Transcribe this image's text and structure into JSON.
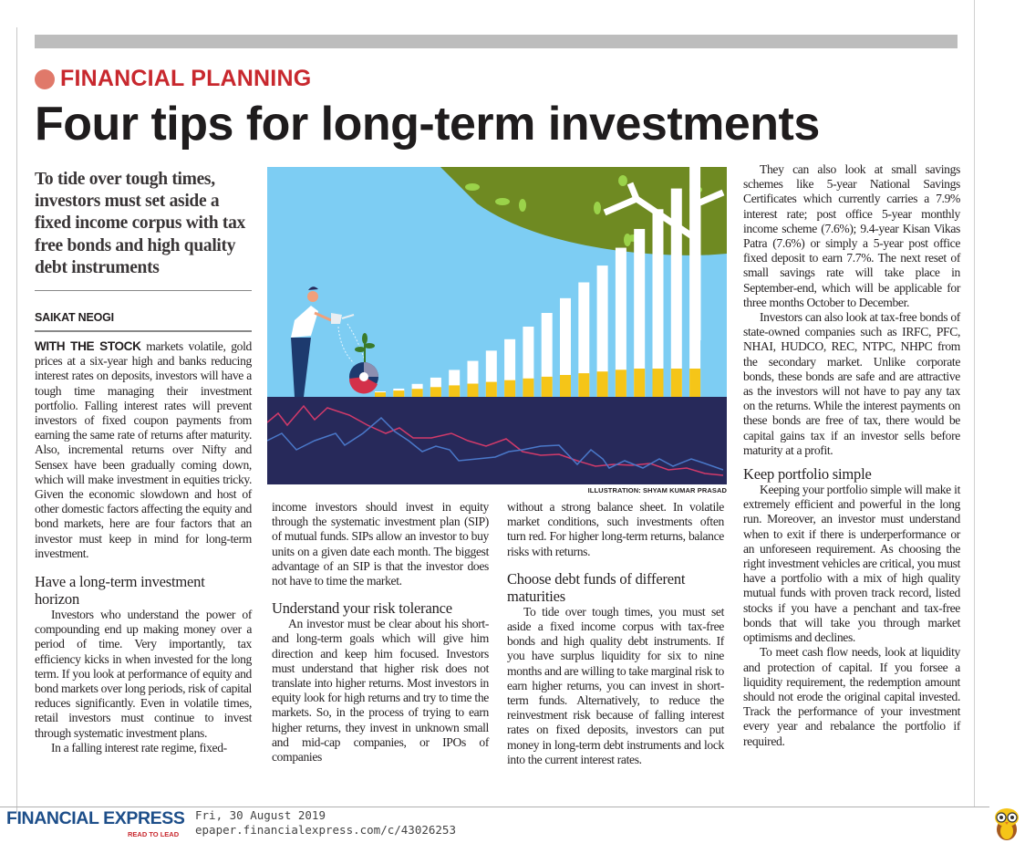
{
  "article": {
    "kicker": "FINANCIAL PLANNING",
    "title": "Four tips for long-term investments",
    "standfirst": "To tide over tough times, investors must set aside a fixed income corpus with tax free bonds and high quality debt instruments",
    "byline": "SAIKAT NEOGI",
    "illustration_credit": "ILLUSTRATION: SHYAM KUMAR PRASAD",
    "lead_caps": "WITH THE STOCK",
    "intro": " markets volatile, gold prices at a six-year high and banks reducing interest rates on deposits, investors will have a tough time managing their investment portfolio. Falling interest rates will prevent investors of fixed coupon payments from earning the same rate of returns after maturity. Also, incremental returns over Nifty and Sensex have been gradually coming down, which will make investment in equities tricky. Given the economic slowdown and host of other domestic factors affecting the equity and bond markets, here are four factors that an investor must keep in mind for long-term investment.",
    "sections": [
      {
        "heading": "Have a long-term investment horizon",
        "paragraphs": [
          "Investors who understand the power of compounding end up making money over a period of time. Very importantly, tax efficiency kicks in when invested for the long term. If you look at performance of equity and bond markets over long periods, risk of capital reduces significantly. Even in volatile times, retail investors must continue to invest through systematic investment plans.",
          "In a falling interest rate regime, fixed-",
          "income investors should invest in equity through the systematic investment plan (SIP) of mutual funds. SIPs allow an investor to buy units on a given date each month. The biggest advantage of an SIP is that the investor does not have to time the market."
        ]
      },
      {
        "heading": "Understand your risk tolerance",
        "paragraphs": [
          "An investor must be clear about his short- and long-term goals which will give him direction and keep him focused. Investors must understand that higher risk does not translate into higher returns. Most investors in equity look for high returns and try to time the markets. So, in the process of trying to earn higher returns, they invest in unknown small and mid-cap companies, or IPOs of companies",
          "without a strong balance sheet. In volatile market conditions, such investments often turn red. For higher long-term returns, balance risks with returns."
        ]
      },
      {
        "heading": "Choose debt funds of different maturities",
        "paragraphs": [
          "To tide over tough times, you must set aside a fixed income corpus with tax-free bonds and high quality debt instruments. If you have surplus liquidity for six to nine months and are willing to take marginal risk to earn higher returns, you can invest in short-term funds. Alternatively, to reduce the reinvestment risk because of falling interest rates on fixed deposits, investors can put money in long-term debt instruments and lock into the current interest rates.",
          "They can also look at small savings schemes like 5-year National Savings Certificates which currently carries a 7.9% interest rate; post office 5-year monthly income scheme (7.6%); 9.4-year Kisan Vikas Patra (7.6%) or simply a 5-year post office fixed deposit to earn 7.7%. The next reset of small savings rate will take place in September-end, which will be applicable for three months October to December.",
          "Investors can also look at tax-free bonds of state-owned companies such as IRFC, PFC, NHAI, HUDCO, REC, NTPC, NHPC from the secondary market. Unlike corporate bonds, these bonds are safe and are attractive as the investors will not have to pay any tax on the returns. While the interest payments on these bonds are free of tax, there would be capital gains tax if an investor sells before maturity at a profit."
        ]
      },
      {
        "heading": "Keep portfolio simple",
        "paragraphs": [
          "Keeping your portfolio simple will make it extremely efficient and powerful in the long run. Moreover, an investor must understand when to exit if there is underperformance or an unforeseen requirement. As choosing the right investment vehicles are critical, you must have a portfolio with a mix of high quality mutual funds with proven track record, listed stocks if you have a penchant and tax-free bonds that will take you through market optimisms and declines.",
          "To meet cash flow needs, look at liquidity and protection of capital. If you forsee a liquidity requirement, the redemption amount should not erode the original capital invested. Track the performance of your investment every year and rebalance the portfolio if required."
        ]
      }
    ]
  },
  "footer": {
    "logo": "FINANCIAL EXPRESS",
    "tagline": "READ TO LEAD",
    "date": "Fri, 30 August 2019",
    "url": "epaper.financialexpress.com/c/43026253"
  },
  "colors": {
    "kicker": "#c8282e",
    "kicker_dot": "#e0796a",
    "logo": "#1d4e89",
    "sky": "#7dcdf3",
    "ground": "#27295a",
    "canopy": "#6f8a22",
    "bar_gold": "#f5c518"
  }
}
